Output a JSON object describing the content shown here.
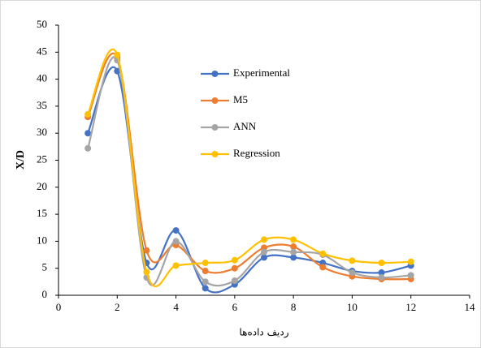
{
  "chart_data": {
    "type": "line",
    "smooth": true,
    "x_label": "ردیف داده‌ها",
    "y_label": "X/D",
    "x": [
      1,
      2,
      3,
      4,
      5,
      6,
      7,
      8,
      9,
      10,
      11,
      12
    ],
    "series": [
      {
        "name": "Experimental",
        "color": "#4472c4",
        "values": [
          30,
          41.5,
          6,
          12,
          1.3,
          2,
          7,
          7,
          6,
          4.5,
          4.2,
          5.5
        ]
      },
      {
        "name": "M5",
        "color": "#ed7d31",
        "values": [
          33,
          44,
          8.3,
          9.3,
          4.5,
          5,
          8.8,
          9,
          5.2,
          3.5,
          3,
          3
        ]
      },
      {
        "name": "ANN",
        "color": "#a5a5a5",
        "values": [
          27.2,
          43.5,
          3.3,
          10,
          2.5,
          2.7,
          8,
          8,
          7.5,
          4.2,
          3.3,
          3.7
        ]
      },
      {
        "name": "Regression",
        "color": "#ffc000",
        "values": [
          33.5,
          44.5,
          4.3,
          5.5,
          6,
          6.5,
          10.3,
          10.3,
          7.7,
          6.4,
          6,
          6.2
        ]
      }
    ],
    "xlim": [
      0,
      14
    ],
    "xticks": [
      0,
      2,
      4,
      6,
      8,
      10,
      12,
      14
    ],
    "ylim": [
      0,
      50
    ],
    "yticks": [
      0,
      5,
      10,
      15,
      20,
      25,
      30,
      35,
      40,
      45,
      50
    ]
  }
}
